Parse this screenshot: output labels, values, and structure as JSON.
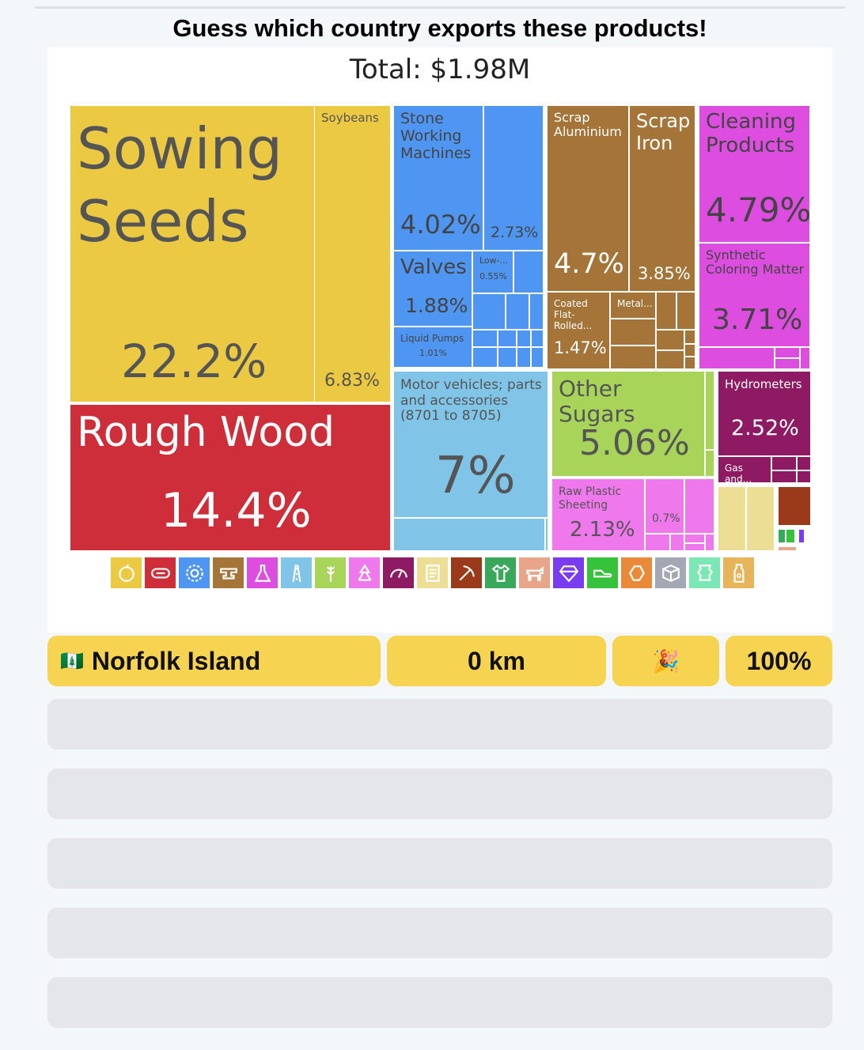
{
  "heading": "Guess which country exports these products!",
  "total": "Total: $1.98M",
  "treemap": [
    {
      "name": "Sowing Seeds",
      "value": "22.2%",
      "color": "#ecc942",
      "text": "#555"
    },
    {
      "name": "Soybeans",
      "value": "6.83%",
      "color": "#ecc942",
      "text": "#555"
    },
    {
      "name": "Rough Wood",
      "value": "14.4%",
      "color": "#ce2e3a",
      "text": "#fff"
    },
    {
      "name": "Stone Working Machines",
      "value": "4.02%",
      "color": "#4f95f2",
      "text": "#444"
    },
    {
      "name": "",
      "value": "2.73%",
      "color": "#4f95f2",
      "text": "#444"
    },
    {
      "name": "Valves",
      "value": "1.88%",
      "color": "#4f95f2",
      "text": "#444"
    },
    {
      "name": "Low-...",
      "value": "0.55%",
      "color": "#4f95f2",
      "text": "#444"
    },
    {
      "name": "Liquid Pumps",
      "value": "1.01%",
      "color": "#4f95f2",
      "text": "#444"
    },
    {
      "name": "Scrap Aluminium",
      "value": "4.7%",
      "color": "#a47438",
      "text": "#fff"
    },
    {
      "name": "Scrap Iron",
      "value": "3.85%",
      "color": "#a47438",
      "text": "#fff"
    },
    {
      "name": "Coated Flat-Rolled...",
      "value": "1.47%",
      "color": "#a47438",
      "text": "#fff"
    },
    {
      "name": "Metal...",
      "value": "",
      "color": "#a47438",
      "text": "#fff"
    },
    {
      "name": "Cleaning Products",
      "value": "4.79%",
      "color": "#dc4de0",
      "text": "#444"
    },
    {
      "name": "Synthetic Coloring Matter",
      "value": "3.71%",
      "color": "#dc4de0",
      "text": "#444"
    },
    {
      "name": "Motor vehicles; parts and accessories (8701 to 8705)",
      "value": "7%",
      "color": "#80c4e8",
      "text": "#555"
    },
    {
      "name": "Other Sugars",
      "value": "5.06%",
      "color": "#a8d45a",
      "text": "#555"
    },
    {
      "name": "Raw Plastic Sheeting",
      "value": "2.13%",
      "color": "#ee78ec",
      "text": "#555"
    },
    {
      "name": "",
      "value": "0.7%",
      "color": "#ee78ec",
      "text": "#555"
    },
    {
      "name": "Hydrometers",
      "value": "2.52%",
      "color": "#8e1a63",
      "text": "#fff"
    },
    {
      "name": "Gas and...",
      "value": "",
      "color": "#8e1a63",
      "text": "#fff"
    }
  ],
  "legend_icons": [
    {
      "name": "vegetable-icon",
      "color": "#ecc942"
    },
    {
      "name": "log-icon",
      "color": "#ce2e3a"
    },
    {
      "name": "gear-icon",
      "color": "#4f95f2"
    },
    {
      "name": "anvil-icon",
      "color": "#a47438"
    },
    {
      "name": "flask-icon",
      "color": "#dc4de0"
    },
    {
      "name": "road-icon",
      "color": "#80c4e8"
    },
    {
      "name": "wheat-icon",
      "color": "#a8d45a"
    },
    {
      "name": "recycle-icon",
      "color": "#ee78ec"
    },
    {
      "name": "gauge-icon",
      "color": "#8e1a63"
    },
    {
      "name": "scroll-icon",
      "color": "#ecdf95"
    },
    {
      "name": "pickaxe-icon",
      "color": "#9a3a1a"
    },
    {
      "name": "shirt-icon",
      "color": "#3aa85a"
    },
    {
      "name": "cow-icon",
      "color": "#e8a58a"
    },
    {
      "name": "diamond-icon",
      "color": "#7a3cf0"
    },
    {
      "name": "shoe-icon",
      "color": "#36c23a"
    },
    {
      "name": "stone-icon",
      "color": "#e88a3a"
    },
    {
      "name": "box-icon",
      "color": "#a4a8b4"
    },
    {
      "name": "leather-icon",
      "color": "#7be8b4"
    },
    {
      "name": "bottle-icon",
      "color": "#e8b45a"
    }
  ],
  "guess": {
    "flag": "🇳🇫",
    "country": "Norfolk Island",
    "distance": "0 km",
    "emoji": "🎉",
    "percent": "100%"
  }
}
